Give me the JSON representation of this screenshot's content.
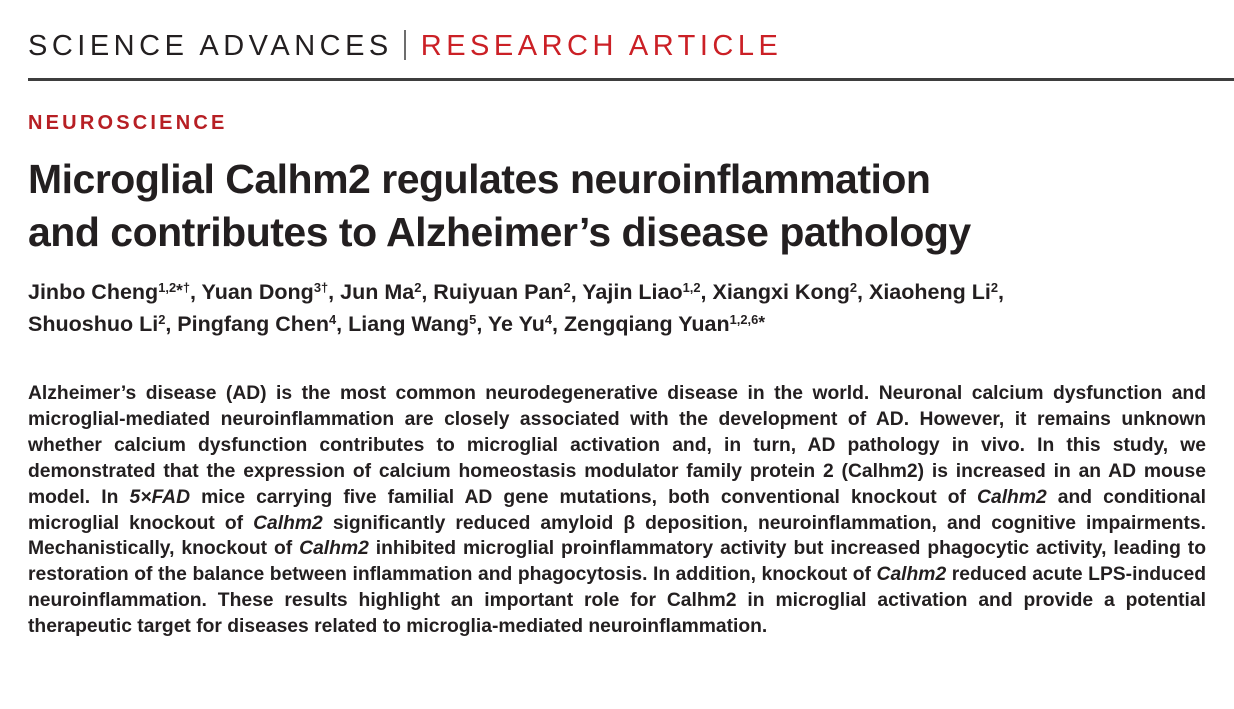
{
  "masthead": {
    "journal": "SCIENCE ADVANCES",
    "separator": "|",
    "article_type": "RESEARCH ARTICLE"
  },
  "kicker": "NEUROSCIENCE",
  "title": {
    "line1": "Microglial Calhm2 regulates neuroinflammation",
    "line2": "and contributes to Alzheimer’s disease pathology"
  },
  "authors": {
    "line1": [
      {
        "t": "Jinbo Cheng"
      },
      {
        "t": "1,2",
        "sup": true
      },
      {
        "t": "*",
        "cls": "ast"
      },
      {
        "t": "†",
        "sup": true
      },
      {
        "t": ", Yuan Dong"
      },
      {
        "t": "3†",
        "sup": true
      },
      {
        "t": ", Jun Ma"
      },
      {
        "t": "2",
        "sup": true
      },
      {
        "t": ", Ruiyuan Pan"
      },
      {
        "t": "2",
        "sup": true
      },
      {
        "t": ", Yajin Liao"
      },
      {
        "t": "1,2",
        "sup": true
      },
      {
        "t": ", Xiangxi Kong"
      },
      {
        "t": "2",
        "sup": true
      },
      {
        "t": ", Xiaoheng Li"
      },
      {
        "t": "2",
        "sup": true
      },
      {
        "t": ","
      }
    ],
    "line2": [
      {
        "t": "Shuoshuo Li"
      },
      {
        "t": "2",
        "sup": true
      },
      {
        "t": ", Pingfang Chen"
      },
      {
        "t": "4",
        "sup": true
      },
      {
        "t": ", Liang Wang"
      },
      {
        "t": "5",
        "sup": true
      },
      {
        "t": ", Ye Yu"
      },
      {
        "t": "4",
        "sup": true
      },
      {
        "t": ", Zengqiang Yuan"
      },
      {
        "t": "1,2,6",
        "sup": true
      },
      {
        "t": "*",
        "cls": "ast"
      }
    ]
  },
  "abstract": {
    "segments": [
      {
        "t": "Alzheimer’s disease (AD) is the most common neurodegenerative disease in the world. Neuronal calcium dysfunction and microglial-mediated neuroinflammation are closely associated with the development of AD. However, it remains unknown whether calcium dysfunction contributes to microglial activation and, in turn, AD pathology in vivo. In this study, we demonstrated that the expression of calcium homeostasis modulator family protein 2 (Calhm2) is increased in an AD mouse model. In "
      },
      {
        "t": "5×FAD",
        "italic": true
      },
      {
        "t": " mice carrying five familial AD gene mutations, both conventional knockout of "
      },
      {
        "t": "Calhm2",
        "italic": true
      },
      {
        "t": " and conditional microglial knockout of "
      },
      {
        "t": "Calhm2",
        "italic": true
      },
      {
        "t": " significantly reduced amyloid β deposition, neuroinflammation, and cognitive impairments. Mechanistically, knockout of "
      },
      {
        "t": "Calhm2",
        "italic": true
      },
      {
        "t": " inhibited microglial proinflammatory activity but increased phagocytic activity, leading to restoration of the balance between inflammation and phagocytosis. In addition, knockout of "
      },
      {
        "t": "Calhm2",
        "italic": true
      },
      {
        "t": " reduced acute LPS-induced neuroinflammation. These results highlight an important role for Calhm2 in microglial activation and provide a potential therapeutic target for diseases related to microglia-mediated neuroinflammation."
      }
    ]
  },
  "colors": {
    "masthead_red": "#cb2026",
    "kicker_red": "#b71f24",
    "text": "#231f20",
    "rule": "#3e3e3e"
  }
}
